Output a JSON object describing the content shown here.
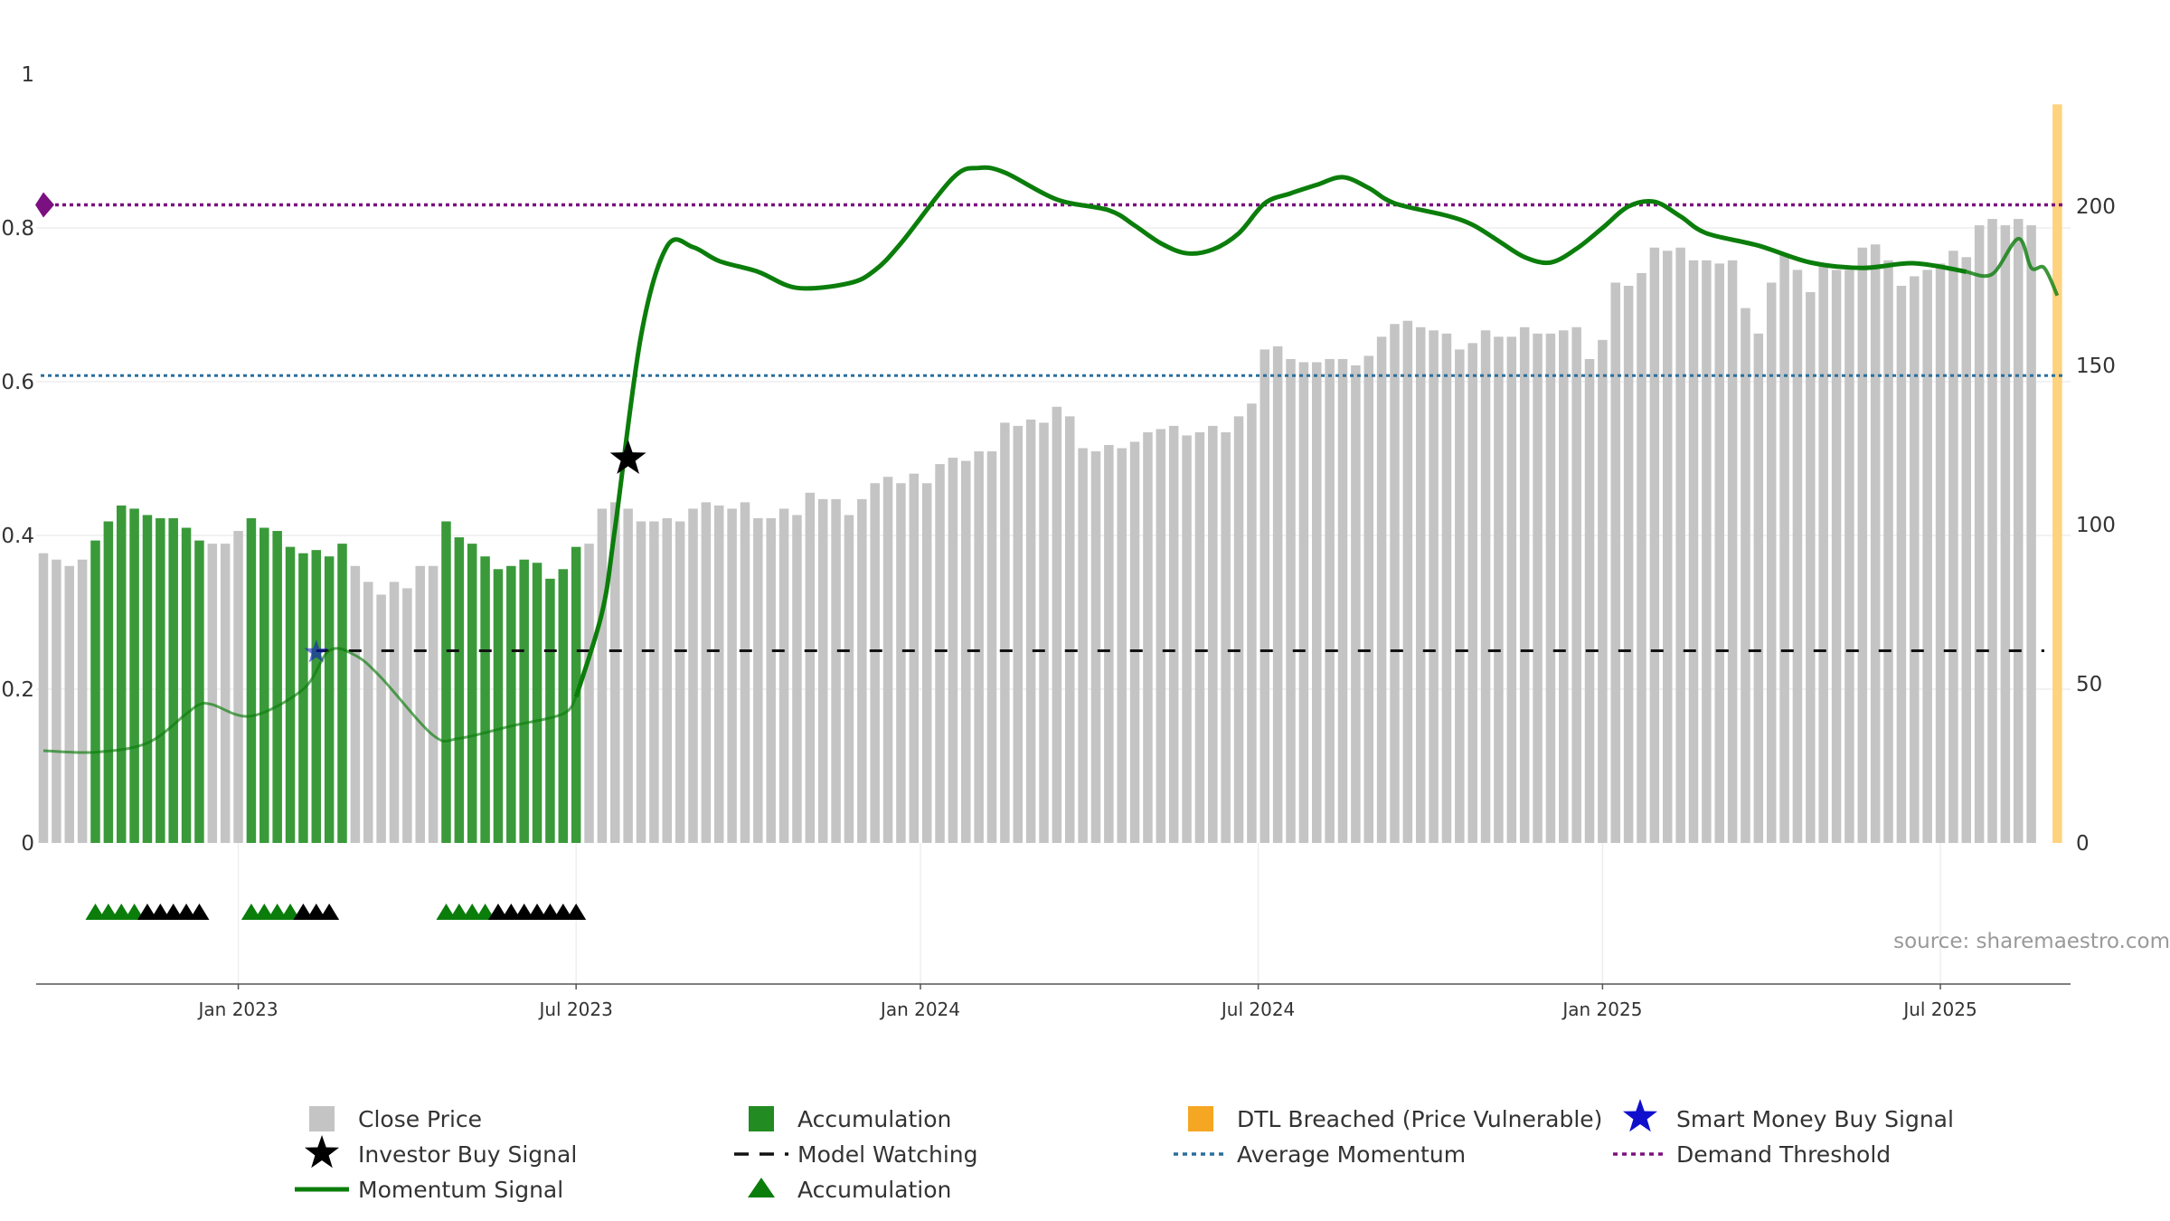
{
  "colors": {
    "close_price": "#c4c4c4",
    "accumulation": "#3a9a3a",
    "accumulation_legend": "#228b22",
    "dtl": "#ffd27f",
    "dtl_legend": "#f5a623",
    "momentum": "#0b7d0b",
    "model_watching": "#111111",
    "avg_momentum": "#2a6f9e",
    "demand_threshold": "#7b1080",
    "investor_star": "#000000",
    "smart_money_star": "#1010cc",
    "source_text": "#999999"
  },
  "chart_data": {
    "type": "bar",
    "title": "",
    "xlabel": "",
    "ylabel": "",
    "left_axis": {
      "range": [
        0,
        1
      ],
      "ticks": [
        "0",
        "0.2",
        "0.4",
        "0.6",
        "0.8",
        "1"
      ],
      "tick_values": [
        0,
        0.2,
        0.4,
        0.6,
        0.8,
        1
      ]
    },
    "right_axis": {
      "range": [
        0,
        230
      ],
      "ticks": [
        "0",
        "50",
        "100",
        "150",
        "200"
      ],
      "tick_values": [
        0,
        50,
        100,
        150,
        200
      ]
    },
    "x_ticks": [
      {
        "label": "Jan 2023",
        "week": 15
      },
      {
        "label": "Jul 2023",
        "week": 41
      },
      {
        "label": "Jan 2024",
        "week": 67.5
      },
      {
        "label": "Jul 2024",
        "week": 93.5
      },
      {
        "label": "Jan 2025",
        "week": 120
      },
      {
        "label": "Jul 2025",
        "week": 146
      }
    ],
    "close_price": [
      91,
      89,
      87,
      89,
      95,
      101,
      106,
      105,
      103,
      102,
      102,
      99,
      95,
      94,
      94,
      98,
      102,
      99,
      98,
      93,
      91,
      92,
      90,
      94,
      87,
      82,
      78,
      82,
      80,
      87,
      87,
      101,
      96,
      94,
      90,
      86,
      87,
      89,
      88,
      83,
      86,
      93,
      94,
      105,
      107,
      105,
      101,
      101,
      102,
      101,
      105,
      107,
      106,
      105,
      107,
      102,
      102,
      105,
      103,
      110,
      108,
      108,
      103,
      108,
      113,
      115,
      113,
      116,
      113,
      119,
      121,
      120,
      123,
      123,
      132,
      131,
      133,
      132,
      137,
      134,
      124,
      123,
      125,
      124,
      126,
      129,
      130,
      131,
      128,
      129,
      131,
      129,
      134,
      138,
      155,
      156,
      152,
      151,
      151,
      152,
      152,
      150,
      153,
      159,
      163,
      164,
      162,
      161,
      160,
      155,
      157,
      161,
      159,
      159,
      162,
      160,
      160,
      161,
      162,
      152,
      158,
      176,
      175,
      179,
      187,
      186,
      187,
      183,
      183,
      182,
      183,
      168,
      160,
      176,
      185,
      180,
      173,
      182,
      180,
      180,
      187,
      188,
      183,
      175,
      178,
      180,
      182,
      186,
      184,
      194,
      196,
      194,
      196,
      194
    ],
    "accumulation_bars": [
      4,
      5,
      6,
      7,
      8,
      9,
      10,
      11,
      12,
      16,
      17,
      18,
      19,
      20,
      21,
      22,
      23,
      31,
      32,
      33,
      34,
      35,
      36,
      37,
      38,
      39,
      40,
      41
    ],
    "dtl_bar": {
      "week": 155,
      "value": 232
    },
    "momentum_signal": [
      [
        0,
        0.12
      ],
      [
        4,
        0.118
      ],
      [
        8,
        0.13
      ],
      [
        11,
        0.168
      ],
      [
        12,
        0.18
      ],
      [
        13,
        0.18
      ],
      [
        16,
        0.165
      ],
      [
        20,
        0.2
      ],
      [
        22,
        0.25
      ],
      [
        24,
        0.244
      ],
      [
        26,
        0.215
      ],
      [
        30,
        0.14
      ],
      [
        32,
        0.136
      ],
      [
        36,
        0.152
      ],
      [
        40,
        0.168
      ],
      [
        41,
        0.19
      ],
      [
        43,
        0.3
      ],
      [
        44,
        0.41
      ],
      [
        46,
        0.66
      ],
      [
        48,
        0.776
      ],
      [
        50,
        0.775
      ],
      [
        52,
        0.757
      ],
      [
        55,
        0.743
      ],
      [
        58,
        0.722
      ],
      [
        62,
        0.728
      ],
      [
        64,
        0.745
      ],
      [
        66,
        0.78
      ],
      [
        70,
        0.865
      ],
      [
        72,
        0.878
      ],
      [
        74,
        0.872
      ],
      [
        78,
        0.837
      ],
      [
        82,
        0.823
      ],
      [
        84,
        0.803
      ],
      [
        86,
        0.78
      ],
      [
        88,
        0.767
      ],
      [
        90,
        0.772
      ],
      [
        92,
        0.793
      ],
      [
        94,
        0.832
      ],
      [
        96,
        0.845
      ],
      [
        98,
        0.856
      ],
      [
        100,
        0.866
      ],
      [
        102,
        0.852
      ],
      [
        104,
        0.832
      ],
      [
        108,
        0.816
      ],
      [
        110,
        0.804
      ],
      [
        112,
        0.783
      ],
      [
        114,
        0.762
      ],
      [
        116,
        0.755
      ],
      [
        118,
        0.773
      ],
      [
        120,
        0.8
      ],
      [
        122,
        0.828
      ],
      [
        124,
        0.834
      ],
      [
        126,
        0.815
      ],
      [
        128,
        0.793
      ],
      [
        132,
        0.777
      ],
      [
        136,
        0.755
      ],
      [
        140,
        0.748
      ],
      [
        144,
        0.754
      ],
      [
        148,
        0.743
      ],
      [
        150,
        0.74
      ],
      [
        152,
        0.786
      ],
      [
        153,
        0.748
      ],
      [
        154,
        0.748
      ],
      [
        155,
        0.712
      ]
    ],
    "investor_buy_signal": {
      "week": 45,
      "value": 0.5
    },
    "smart_money_buy_signal": {
      "week": 21,
      "value": 0.248
    },
    "model_watching": {
      "start_week": 21,
      "end_week": 154,
      "value": 0.25
    },
    "average_momentum": 0.608,
    "demand_threshold": 0.83,
    "accumulation_triangles": {
      "green": [
        4,
        5,
        6,
        7,
        16,
        17,
        18,
        19,
        31,
        32,
        33,
        34
      ],
      "black": [
        8,
        9,
        10,
        11,
        12,
        20,
        21,
        22,
        35,
        36,
        37,
        38,
        39,
        40,
        41
      ]
    },
    "legend_placement": "bottom"
  },
  "legend": {
    "close_price": "Close Price",
    "accumulation_bar": "Accumulation",
    "dtl_breached": "DTL Breached (Price Vulnerable)",
    "smart_money": "Smart Money Buy Signal",
    "investor_buy": "Investor Buy Signal",
    "model_watching": "Model Watching",
    "average_momentum": "Average Momentum",
    "demand_threshold": "Demand Threshold",
    "momentum_signal": "Momentum Signal",
    "accumulation_triangle": "Accumulation"
  },
  "source": "source: sharemaestro.com"
}
